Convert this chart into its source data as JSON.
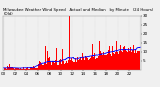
{
  "n_points": 1440,
  "background_color": "#f0f0f0",
  "bar_color": "#ff0000",
  "median_color": "#0000ff",
  "ylim": [
    0,
    30
  ],
  "yticks": [
    5,
    10,
    15,
    20,
    25,
    30
  ],
  "ytick_labels": [
    "5",
    "10",
    "15",
    "20",
    "25",
    "30"
  ],
  "xlabel_fontsize": 3.0,
  "ylabel_fontsize": 3.0,
  "title_fontsize": 2.8,
  "legend_fontsize": 2.8,
  "grid_color": "#cccccc",
  "title_text": "Milwaukee Weather Wind Speed   Actual and Median   by Minute   (24 Hours) (Old)"
}
